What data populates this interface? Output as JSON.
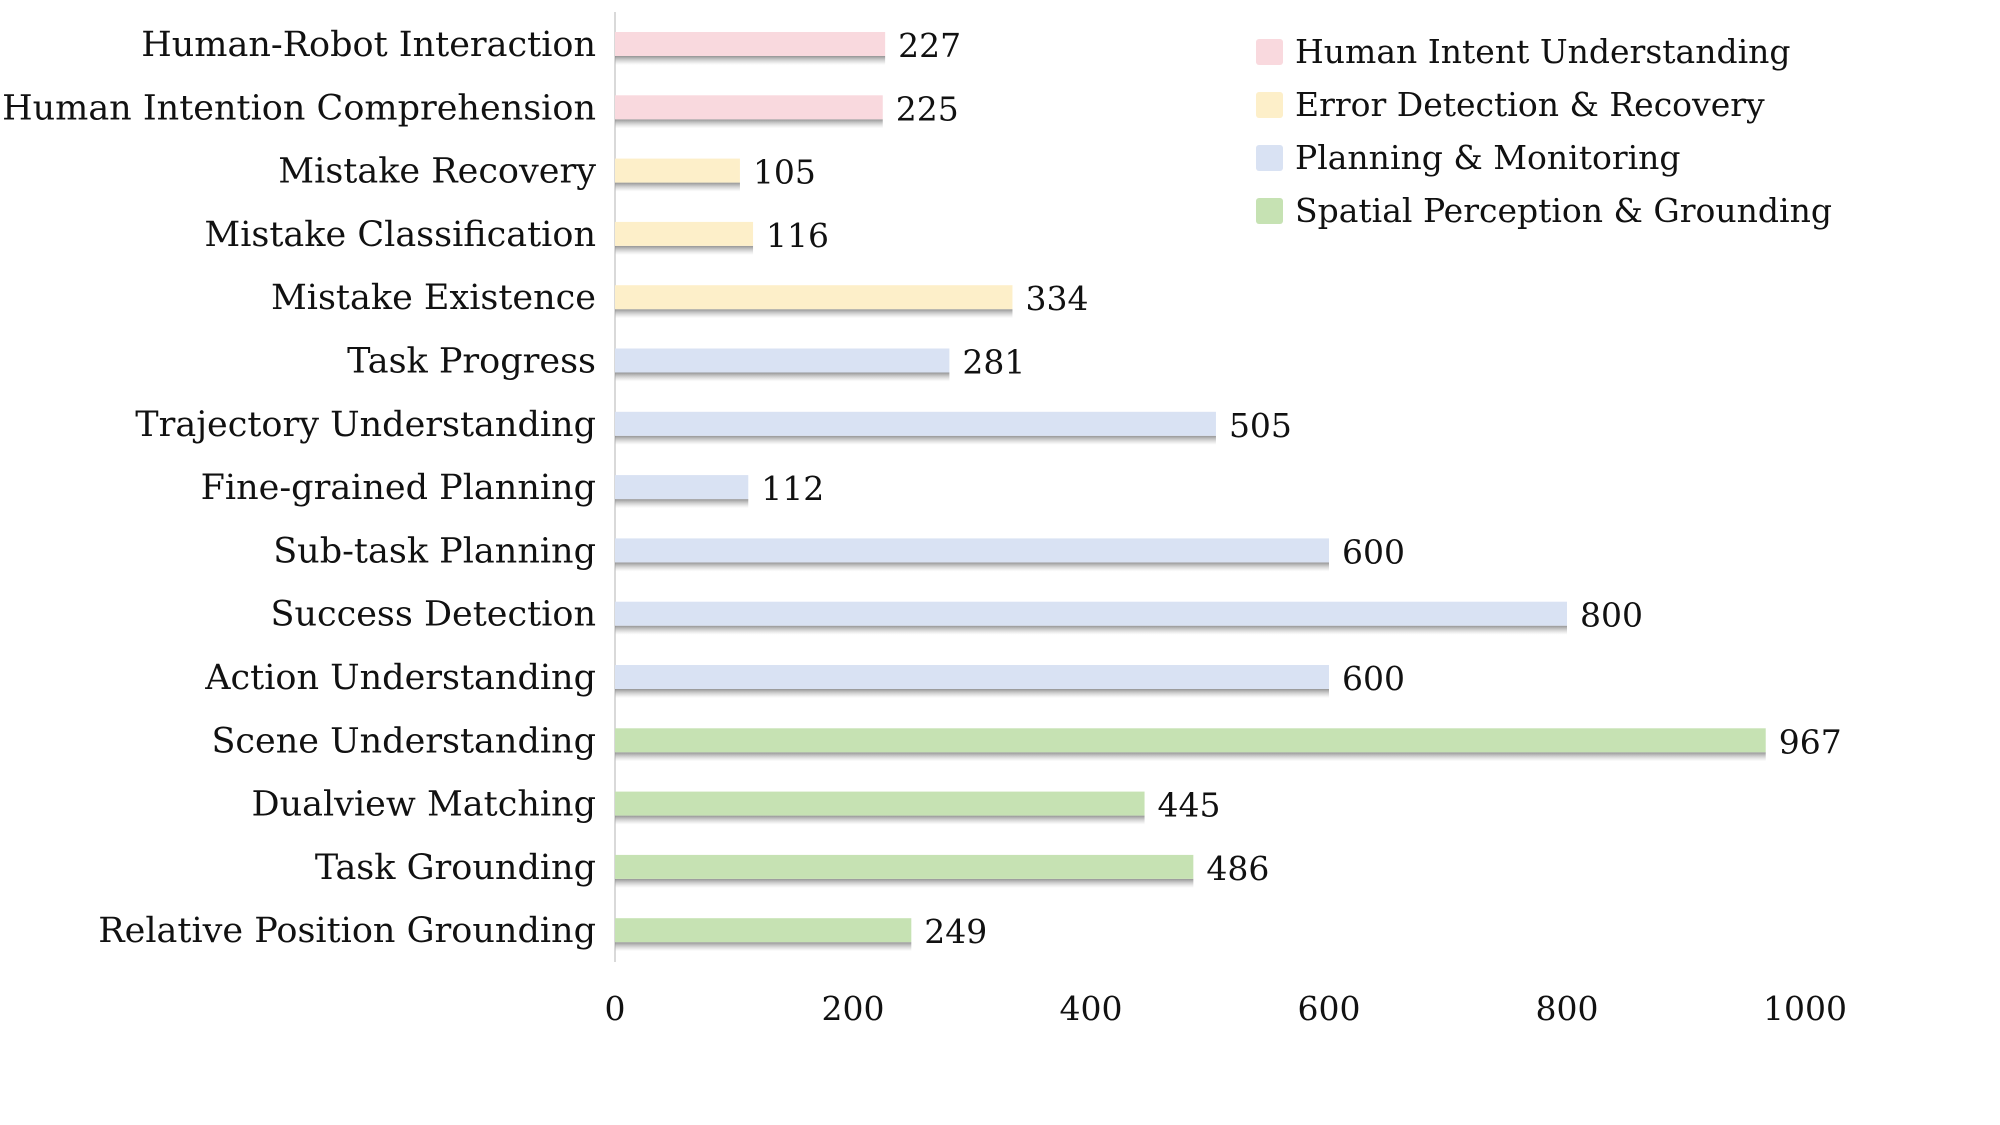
{
  "chart_data": {
    "type": "bar",
    "orientation": "horizontal",
    "title": "",
    "xlabel": "",
    "ylabel": "",
    "xlim": [
      0,
      1000
    ],
    "xticks": [
      "0",
      "200",
      "400",
      "600",
      "800",
      "1000"
    ],
    "grid": false,
    "legend_position": "top-right",
    "legend": [
      {
        "name": "Human Intent Understanding",
        "color": "#f9d9de"
      },
      {
        "name": "Error Detection & Recovery",
        "color": "#fdefc9"
      },
      {
        "name": "Planning & Monitoring",
        "color": "#d9e2f3"
      },
      {
        "name": "Spatial Perception & Grounding",
        "color": "#c6e2b3"
      }
    ],
    "categories": [
      "Human-Robot Interaction",
      "Human Intention Comprehension",
      "Mistake Recovery",
      "Mistake Classification",
      "Mistake Existence",
      "Task Progress",
      "Trajectory Understanding",
      "Fine-grained Planning",
      "Sub-task Planning",
      "Success Detection",
      "Action Understanding",
      "Scene Understanding",
      "Dualview Matching",
      "Task Grounding",
      "Relative Position Grounding"
    ],
    "values": [
      227,
      225,
      105,
      116,
      334,
      281,
      505,
      112,
      600,
      800,
      600,
      967,
      445,
      486,
      249
    ],
    "groups": [
      0,
      0,
      1,
      1,
      1,
      2,
      2,
      2,
      2,
      2,
      2,
      3,
      3,
      3,
      3
    ]
  }
}
